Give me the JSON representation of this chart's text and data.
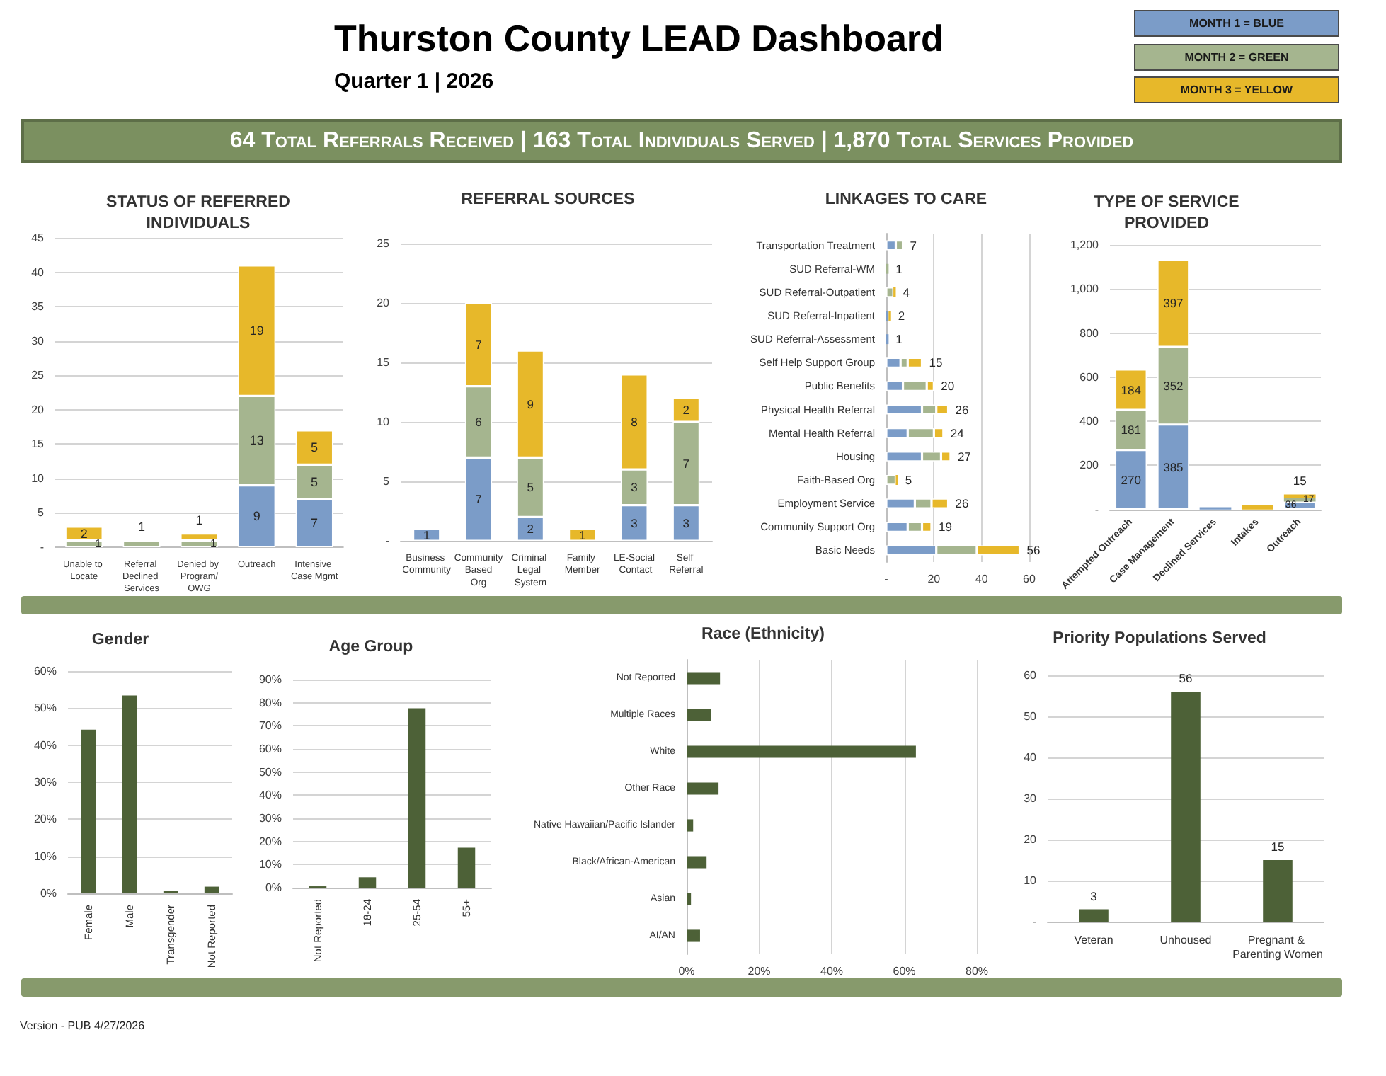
{
  "chart_data": [
    {
      "type": "other",
      "title": "Thurston County LEAD Dashboard",
      "subtitle": "Quarter 1 | 2026",
      "annotations": [
        "64 Total Referrals Received | 163 Total Individuals Served | 1,870 Total Services Provided",
        "MONTH 1 = BLUE",
        "MONTH 2 = GREEN",
        "MONTH 3 = YELLOW"
      ]
    },
    {
      "type": "bar",
      "title": "STATUS OF REFERRED INDIVIDUALS",
      "categories": [
        "Unable to Locate",
        "Referral Declined Services",
        "Denied by Program/OWG",
        "Outreach",
        "Intensive Case Mgmt"
      ],
      "stacked": true,
      "series": [
        {
          "color": "#7b9cc8",
          "values": [
            null,
            null,
            null,
            9,
            7
          ]
        },
        {
          "color": "#a5b58f",
          "values": [
            1,
            1,
            1,
            13,
            5
          ]
        },
        {
          "color": "#e7b82a",
          "values": [
            2,
            null,
            1,
            19,
            5
          ]
        }
      ],
      "ylim": [
        0,
        45
      ],
      "yticks": [
        {
          "value": 0,
          "label": "-"
        },
        5,
        10,
        15,
        20,
        25,
        30,
        35,
        40,
        45
      ],
      "grid": "y",
      "data_labels": true
    },
    {
      "type": "bar",
      "title": "REFERRAL SOURCES",
      "categories": [
        "Business Community",
        "Community Based Org",
        "Criminal Legal System",
        "Family Member",
        "LE-Social Contact",
        "Self Referral"
      ],
      "stacked": true,
      "series": [
        {
          "color": "#7b9cc8",
          "values": [
            1,
            7,
            2,
            null,
            3,
            3
          ]
        },
        {
          "color": "#a5b58f",
          "values": [
            null,
            6,
            5,
            null,
            3,
            7
          ]
        },
        {
          "color": "#e7b82a",
          "values": [
            null,
            7,
            9,
            1,
            8,
            2
          ]
        }
      ],
      "ylim": [
        0,
        25
      ],
      "yticks": [
        {
          "value": 0,
          "label": "-"
        },
        5,
        10,
        15,
        20,
        25
      ],
      "grid": "y",
      "data_labels": true
    },
    {
      "type": "bar",
      "title": "LINKAGES TO CARE",
      "orientation": "horizontal",
      "stacked": true,
      "categories": [
        "Transportation Treatment",
        "SUD Referral-WM",
        "SUD Referral-Outpatient",
        "SUD Referral-Inpatient",
        "SUD Referral-Assessment",
        "Self Help Support Group",
        "Public Benefits",
        "Physical Health Referral",
        "Mental Health Referral",
        "Housing",
        "Faith-Based Org",
        "Employment Service",
        "Community Support Org",
        "Basic Needs"
      ],
      "series": [
        {
          "color": "#7b9cc8",
          "values": [
            4,
            null,
            null,
            1,
            1,
            6,
            7,
            15,
            9,
            15,
            null,
            12,
            9,
            21
          ]
        },
        {
          "color": "#a5b58f",
          "values": [
            3,
            1,
            3,
            null,
            null,
            3,
            10,
            6,
            11,
            8,
            4,
            7,
            6,
            17
          ]
        },
        {
          "color": "#e7b82a",
          "values": [
            null,
            null,
            1,
            1,
            null,
            6,
            3,
            5,
            4,
            4,
            1,
            7,
            4,
            18
          ]
        }
      ],
      "totals": [
        "7",
        "1",
        "4",
        "2",
        "1",
        "15",
        "20",
        "26",
        "24",
        "27",
        "5",
        "26",
        "19",
        "56"
      ],
      "xlim": [
        0,
        60
      ],
      "xticks": [
        {
          "value": 0,
          "label": "-"
        },
        20,
        40,
        60
      ],
      "grid": "x"
    },
    {
      "type": "bar",
      "title": "TYPE OF SERVICE PROVIDED",
      "categories": [
        "Attempted Outreach",
        "Case Management",
        "Declined Services",
        "Intakes",
        "Outreach"
      ],
      "stacked": true,
      "series": [
        {
          "color": "#7b9cc8",
          "values": [
            270,
            385,
            10,
            null,
            36
          ],
          "value_labels": [
            "270",
            "385",
            null,
            null,
            "36"
          ]
        },
        {
          "color": "#a5b58f",
          "values": [
            181,
            352,
            null,
            null,
            17
          ],
          "value_labels": [
            "181",
            "352",
            null,
            null,
            "17"
          ]
        },
        {
          "color": "#e7b82a",
          "values": [
            184,
            397,
            null,
            18,
            15
          ],
          "value_labels": [
            "184",
            "397",
            null,
            null,
            "15"
          ]
        }
      ],
      "ylim": [
        0,
        1200
      ],
      "yticks": [
        {
          "value": 0,
          "label": "-"
        },
        200,
        400,
        600,
        800,
        {
          "value": 1000,
          "label": "1,000"
        },
        {
          "value": 1200,
          "label": "1,200"
        }
      ],
      "grid": "y"
    },
    {
      "type": "bar",
      "title": "Gender",
      "categories": [
        "Female",
        "Male",
        "Transgender",
        "Not Reported"
      ],
      "values": [
        44.2,
        53.4,
        0.6,
        1.8
      ],
      "color": "#4d6137",
      "ylim": [
        0,
        60
      ],
      "yticks": [
        {
          "value": 0,
          "label": "0%"
        },
        {
          "value": 10,
          "label": "10%"
        },
        {
          "value": 20,
          "label": "20%"
        },
        {
          "value": 30,
          "label": "30%"
        },
        {
          "value": 40,
          "label": "40%"
        },
        {
          "value": 50,
          "label": "50%"
        },
        {
          "value": 60,
          "label": "60%"
        }
      ],
      "grid": "y"
    },
    {
      "type": "bar",
      "title": "Age Group",
      "categories": [
        "Not Reported",
        "18-24",
        "25-54",
        "55+"
      ],
      "values": [
        0.6,
        4.5,
        77.6,
        17.3
      ],
      "color": "#4d6137",
      "ylim": [
        0,
        90
      ],
      "yticks": [
        {
          "value": 0,
          "label": "0%"
        },
        {
          "value": 10,
          "label": "10%"
        },
        {
          "value": 20,
          "label": "20%"
        },
        {
          "value": 30,
          "label": "30%"
        },
        {
          "value": 40,
          "label": "40%"
        },
        {
          "value": 50,
          "label": "50%"
        },
        {
          "value": 60,
          "label": "60%"
        },
        {
          "value": 70,
          "label": "70%"
        },
        {
          "value": 80,
          "label": "80%"
        },
        {
          "value": 90,
          "label": "90%"
        }
      ],
      "grid": "y"
    },
    {
      "type": "bar",
      "title": "Race (Ethnicity)",
      "orientation": "horizontal",
      "categories": [
        "Not Reported",
        "Multiple Races",
        "White",
        "Other Race",
        "Native Hawaiian/Pacific Islander",
        "Black/African-American",
        "Asian",
        "AI/AN"
      ],
      "values": [
        9.2,
        6.7,
        63.2,
        8.8,
        1.8,
        5.5,
        1.2,
        3.7
      ],
      "color": "#4d6137",
      "xlim": [
        0,
        80
      ],
      "xticks": [
        {
          "value": 0,
          "label": "0%"
        },
        {
          "value": 20,
          "label": "20%"
        },
        {
          "value": 40,
          "label": "40%"
        },
        {
          "value": 60,
          "label": "60%"
        },
        {
          "value": 80,
          "label": "80%"
        }
      ],
      "grid": "x"
    },
    {
      "type": "bar",
      "title": "Priority Populations Served",
      "categories": [
        "Veteran",
        "Unhoused",
        "Pregnant & Parenting Women"
      ],
      "values": [
        3,
        56,
        15
      ],
      "color": "#4d6137",
      "ylim": [
        0,
        60
      ],
      "yticks": [
        {
          "value": 0,
          "label": "-"
        },
        10,
        20,
        30,
        40,
        50,
        60
      ],
      "grid": "y",
      "data_labels": true
    },
    {
      "type": "other",
      "annotations": [
        "Version - PUB 4/27/2026"
      ]
    }
  ]
}
